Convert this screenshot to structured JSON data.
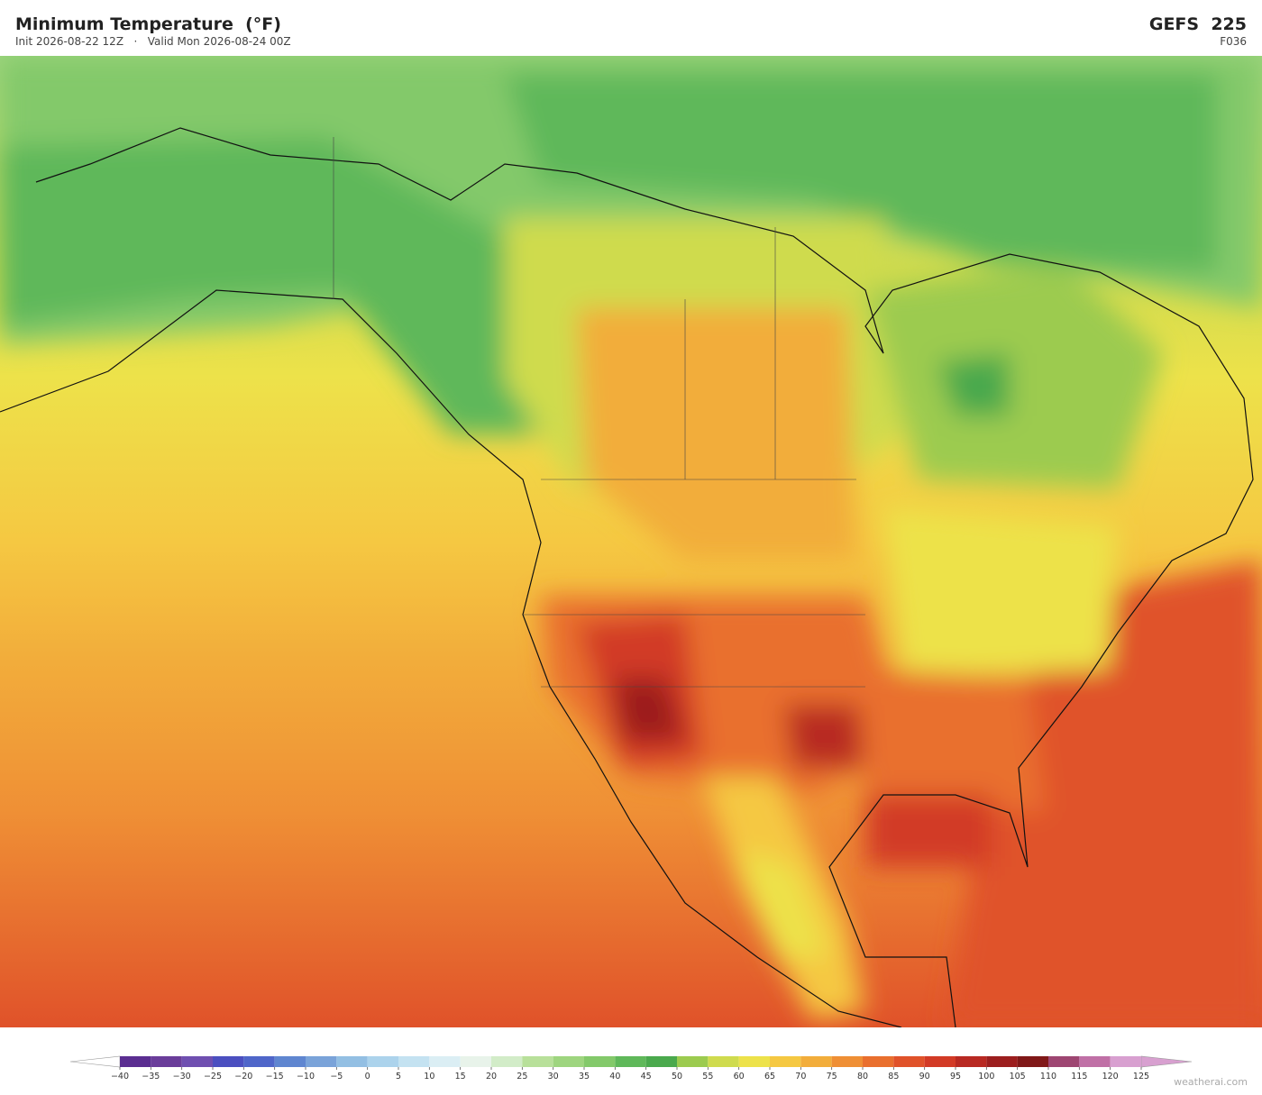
{
  "header": {
    "title": "Minimum Temperature  (°F)",
    "subtitle": "Init 2026-08-22 12Z   ·   Valid Mon 2026-08-24 00Z",
    "model": "GEFS  225",
    "forecast_hour": "F036"
  },
  "colorbar": {
    "ticks": [
      {
        "value": -40,
        "label": "−40"
      },
      {
        "value": -35,
        "label": "−35"
      },
      {
        "value": -30,
        "label": "−30"
      },
      {
        "value": -25,
        "label": "−25"
      },
      {
        "value": -20,
        "label": "−20"
      },
      {
        "value": -15,
        "label": "−15"
      },
      {
        "value": -10,
        "label": "−10"
      },
      {
        "value": -5,
        "label": "−5"
      },
      0,
      5,
      10,
      15,
      20,
      25,
      30,
      35,
      40,
      45,
      50,
      55,
      60,
      65,
      70,
      75,
      80,
      85,
      90,
      95,
      100,
      105,
      110,
      115,
      120,
      125
    ],
    "colors": [
      "#5b2e91",
      "#6a3d9a",
      "#6f4fb0",
      "#4b4fc0",
      "#4f66c9",
      "#5f86d0",
      "#7aa3d9",
      "#93bfe3",
      "#acd3ec",
      "#c4e2f1",
      "#dbeef4",
      "#e8f3ea",
      "#d2ecc8",
      "#b8e09a",
      "#9ed57f",
      "#83c96a",
      "#5fb85a",
      "#4aa94d",
      "#9ccb4f",
      "#cfdb4e",
      "#ede24a",
      "#f5c842",
      "#f2ad3b",
      "#ef8f35",
      "#e96f2e",
      "#e0522a",
      "#d23a26",
      "#b82922",
      "#9c1e1e",
      "#801818",
      "#9e4672",
      "#c070a6",
      "#d8a0d0"
    ],
    "under_color": "#ffffff",
    "over_color": "#d8a0d0"
  },
  "watermark": "weatherai.com"
}
